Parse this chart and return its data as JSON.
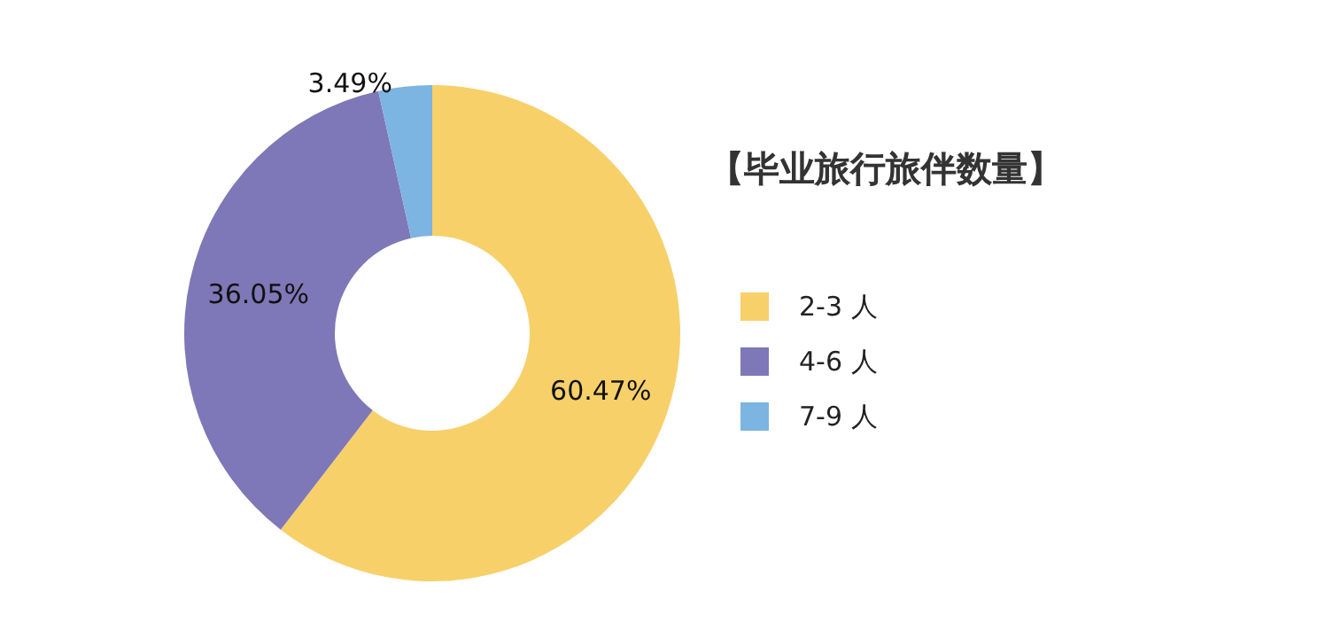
{
  "chart_data": {
    "type": "donut",
    "title": "【毕业旅行旅伴数量】",
    "categories": [
      "2-3 人",
      "4-6 人",
      "7-9 人"
    ],
    "values": [
      60.47,
      36.05,
      3.49
    ],
    "colors": [
      "#f7d06a",
      "#7e78b8",
      "#7cb4e2"
    ],
    "value_labels": [
      "60.47%",
      "36.05%",
      "3.49%"
    ],
    "legend": "right"
  }
}
